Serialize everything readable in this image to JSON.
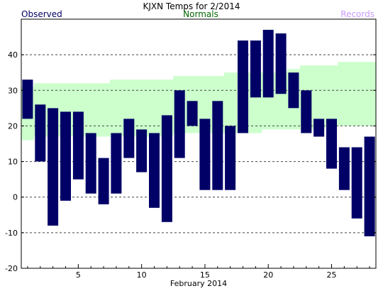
{
  "chart_data": {
    "type": "bar",
    "title": "KJXN Temps for 2/2014",
    "xlabel": "February 2014",
    "ylabel": "",
    "legend": [
      {
        "label": "Observed",
        "color": "#000066",
        "placement": "top-left"
      },
      {
        "label": "Normals",
        "color": "#006600",
        "placement": "top-center"
      },
      {
        "label": "Records",
        "color": "#cc99ff",
        "placement": "top-right"
      }
    ],
    "xlim": [
      0.5,
      28.5
    ],
    "ylim": [
      -20,
      50
    ],
    "x_ticks": [
      5,
      10,
      15,
      20,
      25
    ],
    "y_ticks": [
      -20,
      -10,
      0,
      10,
      20,
      30,
      40
    ],
    "grid": "horizontal dashed",
    "colors": {
      "observed": "#000066",
      "normals": "#ccffcc",
      "records": "#cc99ff",
      "grid": "#444444",
      "axis": "#000000"
    },
    "observed": {
      "days": [
        1,
        2,
        3,
        4,
        5,
        6,
        7,
        8,
        9,
        10,
        11,
        12,
        13,
        14,
        15,
        16,
        17,
        18,
        19,
        20,
        21,
        22,
        23,
        24,
        25,
        26,
        27,
        28
      ],
      "high": [
        33,
        26,
        25,
        24,
        24,
        18,
        11,
        18,
        22,
        19,
        18,
        23,
        30,
        27,
        22,
        27,
        20,
        44,
        44,
        47,
        46,
        35,
        30,
        22,
        22,
        14,
        14,
        17
      ],
      "low": [
        22,
        10,
        -8,
        -1,
        5,
        1,
        -2,
        1,
        11,
        7,
        -3,
        -7,
        11,
        20,
        2,
        2,
        2,
        18,
        28,
        28,
        29,
        25,
        18,
        17,
        8,
        2,
        -6,
        -11
      ]
    },
    "normals": {
      "days": [
        1,
        2,
        3,
        4,
        5,
        6,
        7,
        8,
        9,
        10,
        11,
        12,
        13,
        14,
        15,
        16,
        17,
        18,
        19,
        20,
        21,
        22,
        23,
        24,
        25,
        26,
        27,
        28
      ],
      "high": [
        31,
        32,
        32,
        32,
        32,
        32,
        32,
        33,
        33,
        33,
        33,
        33,
        34,
        34,
        34,
        34,
        35,
        35,
        35,
        35,
        35,
        36,
        37,
        37,
        37,
        38,
        38,
        38
      ],
      "low": [
        16,
        17,
        17,
        17,
        17,
        17,
        17,
        17,
        17,
        17,
        17,
        17,
        18,
        18,
        18,
        18,
        18,
        18,
        18,
        19,
        19,
        19,
        19,
        19,
        20,
        20,
        20,
        20
      ]
    }
  }
}
